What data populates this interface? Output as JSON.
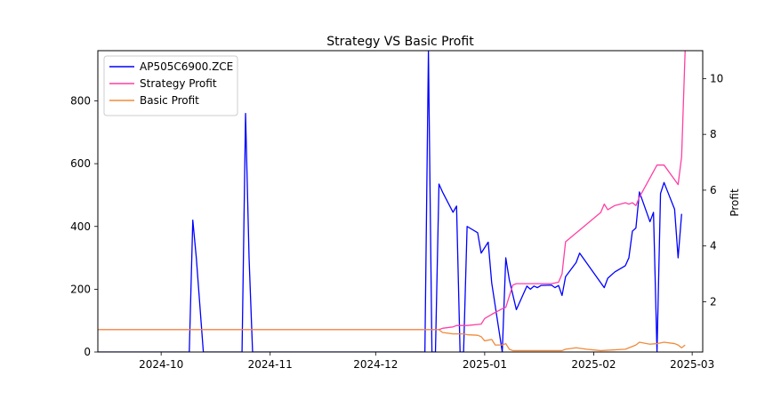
{
  "chart_data": {
    "type": "line",
    "title": "Strategy VS Basic Profit",
    "xlabel": "",
    "ylabel_left": "",
    "ylabel_right": "Profit",
    "x_ticks": [
      "2024-10",
      "2024-11",
      "2024-12",
      "2025-01",
      "2025-02",
      "2025-03"
    ],
    "y_left_ticks": [
      "0",
      "200",
      "400",
      "600",
      "800"
    ],
    "y_right_ticks": [
      "2",
      "4",
      "6",
      "8",
      "10"
    ],
    "xlim": [
      "2024-09-13",
      "2025-03-04"
    ],
    "ylim_left": [
      0,
      960
    ],
    "ylim_right": [
      0.2,
      11
    ],
    "legend_position": "upper left",
    "series": [
      {
        "name": "AP505C6900.ZCE",
        "axis": "left",
        "color": "#0000ff",
        "points": [
          [
            "2024-09-13",
            0
          ],
          [
            "2024-10-09",
            0
          ],
          [
            "2024-10-10",
            420
          ],
          [
            "2024-10-11",
            300
          ],
          [
            "2024-10-13",
            0
          ],
          [
            "2024-10-24",
            0
          ],
          [
            "2024-10-25",
            760
          ],
          [
            "2024-10-26",
            300
          ],
          [
            "2024-10-27",
            0
          ],
          [
            "2024-12-15",
            0
          ],
          [
            "2024-12-16",
            960
          ],
          [
            "2024-12-17",
            0
          ],
          [
            "2024-12-18",
            0
          ],
          [
            "2024-12-19",
            535
          ],
          [
            "2024-12-20",
            510
          ],
          [
            "2024-12-23",
            445
          ],
          [
            "2024-12-24",
            465
          ],
          [
            "2024-12-25",
            0
          ],
          [
            "2024-12-26",
            0
          ],
          [
            "2024-12-27",
            400
          ],
          [
            "2024-12-30",
            380
          ],
          [
            "2024-12-31",
            315
          ],
          [
            "2025-01-02",
            350
          ],
          [
            "2025-01-03",
            220
          ],
          [
            "2025-01-06",
            0
          ],
          [
            "2025-01-07",
            300
          ],
          [
            "2025-01-08",
            230
          ],
          [
            "2025-01-10",
            135
          ],
          [
            "2025-01-13",
            210
          ],
          [
            "2025-01-14",
            200
          ],
          [
            "2025-01-15",
            210
          ],
          [
            "2025-01-16",
            205
          ],
          [
            "2025-01-17",
            212
          ],
          [
            "2025-01-20",
            213
          ],
          [
            "2025-01-21",
            205
          ],
          [
            "2025-01-22",
            212
          ],
          [
            "2025-01-23",
            180
          ],
          [
            "2025-01-24",
            240
          ],
          [
            "2025-01-27",
            285
          ],
          [
            "2025-01-28",
            315
          ],
          [
            "2025-02-04",
            205
          ],
          [
            "2025-02-05",
            235
          ],
          [
            "2025-02-07",
            255
          ],
          [
            "2025-02-10",
            275
          ],
          [
            "2025-02-11",
            300
          ],
          [
            "2025-02-12",
            385
          ],
          [
            "2025-02-13",
            395
          ],
          [
            "2025-02-14",
            510
          ],
          [
            "2025-02-17",
            415
          ],
          [
            "2025-02-18",
            445
          ],
          [
            "2025-02-19",
            0
          ],
          [
            "2025-02-20",
            505
          ],
          [
            "2025-02-21",
            540
          ],
          [
            "2025-02-24",
            455
          ],
          [
            "2025-02-25",
            300
          ],
          [
            "2025-02-26",
            440
          ]
        ]
      },
      {
        "name": "Strategy Profit",
        "axis": "right",
        "color": "#ff3fa4",
        "points": [
          [
            "2024-09-13",
            1.0
          ],
          [
            "2024-12-17",
            1.0
          ],
          [
            "2024-12-19",
            1.0
          ],
          [
            "2024-12-20",
            1.05
          ],
          [
            "2024-12-23",
            1.1
          ],
          [
            "2024-12-24",
            1.15
          ],
          [
            "2024-12-27",
            1.15
          ],
          [
            "2024-12-31",
            1.2
          ],
          [
            "2025-01-01",
            1.4
          ],
          [
            "2025-01-03",
            1.55
          ],
          [
            "2025-01-06",
            1.75
          ],
          [
            "2025-01-07",
            1.8
          ],
          [
            "2025-01-08",
            2.2
          ],
          [
            "2025-01-09",
            2.6
          ],
          [
            "2025-01-10",
            2.65
          ],
          [
            "2025-01-13",
            2.65
          ],
          [
            "2025-01-20",
            2.65
          ],
          [
            "2025-01-22",
            2.7
          ],
          [
            "2025-01-23",
            3.0
          ],
          [
            "2025-01-24",
            4.15
          ],
          [
            "2025-02-03",
            5.2
          ],
          [
            "2025-02-04",
            5.5
          ],
          [
            "2025-02-05",
            5.3
          ],
          [
            "2025-02-07",
            5.45
          ],
          [
            "2025-02-10",
            5.55
          ],
          [
            "2025-02-11",
            5.5
          ],
          [
            "2025-02-12",
            5.55
          ],
          [
            "2025-02-13",
            5.45
          ],
          [
            "2025-02-14",
            5.75
          ],
          [
            "2025-02-19",
            6.9
          ],
          [
            "2025-02-21",
            6.9
          ],
          [
            "2025-02-25",
            6.2
          ],
          [
            "2025-02-26",
            7.2
          ],
          [
            "2025-02-27",
            11.0
          ]
        ]
      },
      {
        "name": "Basic Profit",
        "axis": "right",
        "color": "#f08a3c",
        "points": [
          [
            "2024-09-13",
            1.0
          ],
          [
            "2024-12-17",
            1.0
          ],
          [
            "2024-12-19",
            1.0
          ],
          [
            "2024-12-20",
            0.9
          ],
          [
            "2024-12-23",
            0.85
          ],
          [
            "2024-12-26",
            0.85
          ],
          [
            "2024-12-27",
            0.82
          ],
          [
            "2024-12-30",
            0.8
          ],
          [
            "2024-12-31",
            0.75
          ],
          [
            "2025-01-01",
            0.6
          ],
          [
            "2025-01-03",
            0.65
          ],
          [
            "2025-01-04",
            0.45
          ],
          [
            "2025-01-06",
            0.45
          ],
          [
            "2025-01-07",
            0.5
          ],
          [
            "2025-01-08",
            0.3
          ],
          [
            "2025-01-09",
            0.25
          ],
          [
            "2025-01-23",
            0.25
          ],
          [
            "2025-01-24",
            0.3
          ],
          [
            "2025-01-27",
            0.35
          ],
          [
            "2025-01-30",
            0.3
          ],
          [
            "2025-02-03",
            0.25
          ],
          [
            "2025-02-10",
            0.3
          ],
          [
            "2025-02-12",
            0.4
          ],
          [
            "2025-02-13",
            0.45
          ],
          [
            "2025-02-14",
            0.55
          ],
          [
            "2025-02-17",
            0.48
          ],
          [
            "2025-02-19",
            0.5
          ],
          [
            "2025-02-21",
            0.55
          ],
          [
            "2025-02-24",
            0.5
          ],
          [
            "2025-02-25",
            0.45
          ],
          [
            "2025-02-26",
            0.35
          ],
          [
            "2025-02-27",
            0.45
          ]
        ]
      }
    ]
  }
}
